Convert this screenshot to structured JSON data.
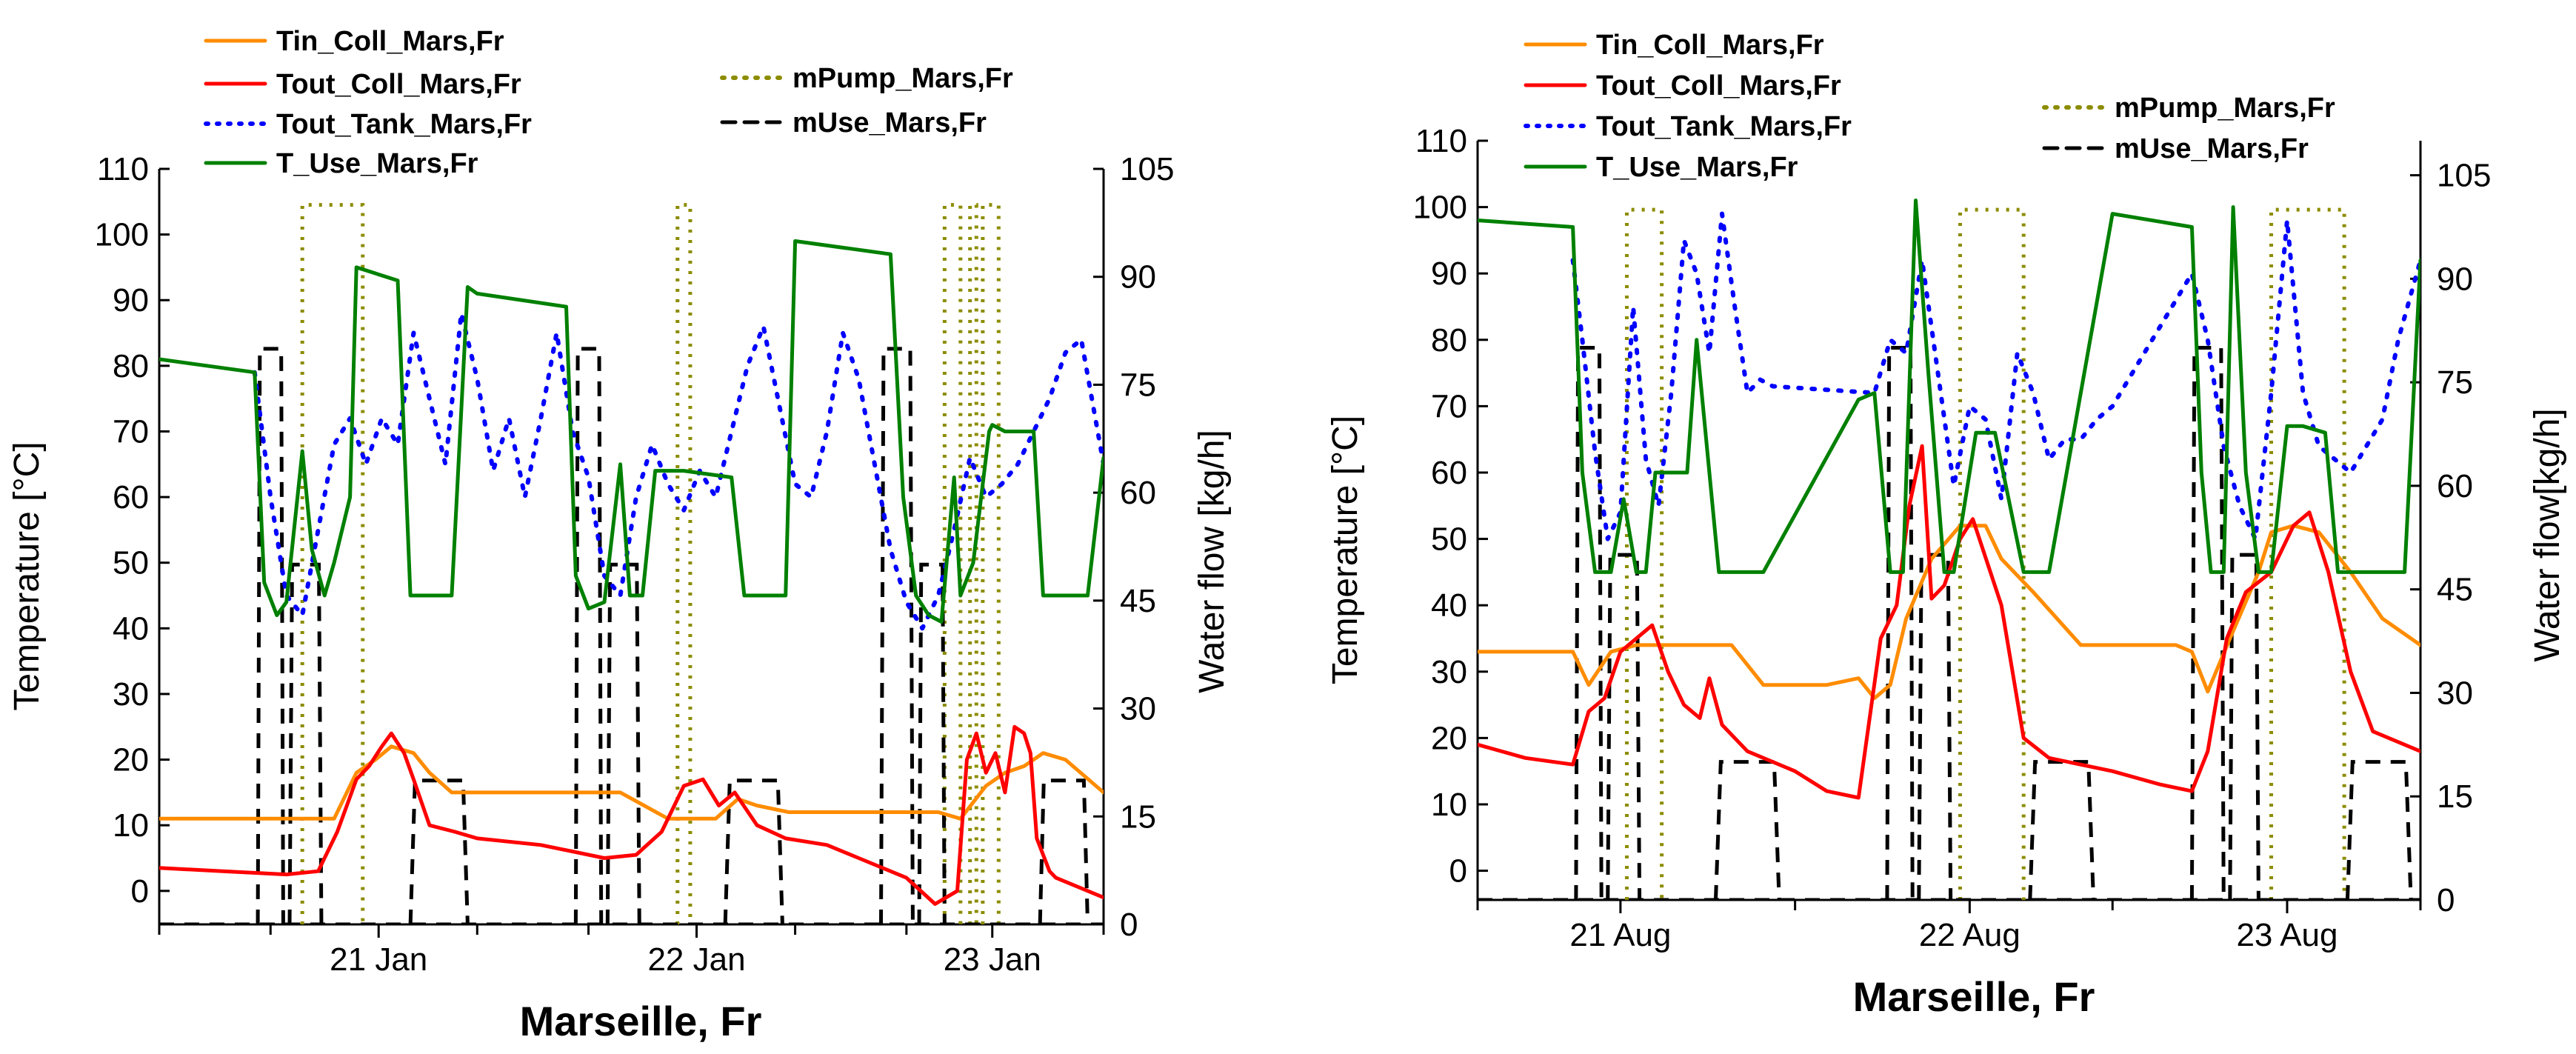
{
  "chart_data": [
    {
      "type": "line",
      "location": "Marseille, Fr",
      "xlabel": "Marseille, Fr",
      "ylabel_left": "Temperature [°C]",
      "ylabel_right": "Water flow [kg/h]",
      "ylim_left": [
        -5,
        110
      ],
      "yticks_left": [
        0,
        10,
        20,
        30,
        40,
        50,
        60,
        70,
        80,
        90,
        100,
        110
      ],
      "ylim_right": [
        0,
        105
      ],
      "yticks_right": [
        0,
        15,
        30,
        45,
        60,
        75,
        90,
        105
      ],
      "xlim": [
        0,
        2.97
      ],
      "x_tick_positions": [
        0.69,
        1.69,
        2.62
      ],
      "x_tick_labels": [
        "21 Jan",
        "22 Jan",
        "23 Jan"
      ],
      "x_minor_ticks": [
        0.0,
        0.35,
        1.0,
        1.35,
        2.0,
        2.35,
        2.97
      ],
      "legend": [
        {
          "name": "Tin_Coll_Mars,Fr",
          "color": "#ff8c00",
          "style": "solid"
        },
        {
          "name": "Tout_Coll_Mars,Fr",
          "color": "#ff0000",
          "style": "solid"
        },
        {
          "name": "Tout_Tank_Mars,Fr",
          "color": "#0000ff",
          "style": "dotted"
        },
        {
          "name": "T_Use_Mars,Fr",
          "color": "#008000",
          "style": "solid"
        },
        {
          "name": "mPump_Mars,Fr",
          "color": "#8c8c00",
          "style": "dotted"
        },
        {
          "name": "mUse_Mars,Fr",
          "color": "#000000",
          "style": "dashed"
        }
      ],
      "series": [
        {
          "name": "Tin_Coll_Mars,Fr",
          "axis": "left",
          "color": "#ff8c00",
          "style": "solid",
          "x": [
            0,
            0.3,
            0.55,
            0.62,
            0.68,
            0.73,
            0.8,
            0.85,
            0.92,
            1.0,
            1.15,
            1.3,
            1.45,
            1.6,
            1.64,
            1.7,
            1.75,
            1.82,
            1.88,
            1.98,
            2.1,
            2.3,
            2.45,
            2.52,
            2.6,
            2.66,
            2.72,
            2.78,
            2.85,
            2.97
          ],
          "y": [
            11,
            11,
            11,
            18,
            20,
            22,
            21,
            18,
            15,
            15,
            15,
            15,
            15,
            11,
            11,
            11,
            11,
            14,
            13,
            12,
            12,
            12,
            12,
            11,
            16,
            18,
            19,
            21,
            20,
            15
          ]
        },
        {
          "name": "Tout_Coll_Mars,Fr",
          "axis": "left",
          "color": "#ff0000",
          "style": "solid",
          "x": [
            0,
            0.2,
            0.4,
            0.5,
            0.56,
            0.62,
            0.66,
            0.7,
            0.73,
            0.77,
            0.8,
            0.85,
            0.93,
            1.0,
            1.2,
            1.4,
            1.5,
            1.58,
            1.65,
            1.71,
            1.76,
            1.81,
            1.88,
            1.97,
            2.1,
            2.2,
            2.35,
            2.44,
            2.51,
            2.54,
            2.57,
            2.6,
            2.63,
            2.66,
            2.69,
            2.72,
            2.74,
            2.76,
            2.8,
            2.82,
            2.97
          ],
          "y": [
            3.5,
            3,
            2.5,
            3,
            9,
            17,
            19,
            22,
            24,
            21,
            17,
            10,
            9,
            8,
            7,
            5,
            5.5,
            9,
            16,
            17,
            13,
            15,
            10,
            8,
            7,
            5,
            2,
            -2,
            0,
            20,
            24,
            18,
            21,
            15,
            25,
            24,
            21,
            8,
            3,
            2,
            -1
          ]
        },
        {
          "name": "Tout_Tank_Mars,Fr",
          "axis": "left",
          "color": "#0000ff",
          "style": "dotted",
          "x": [
            0.3,
            0.35,
            0.4,
            0.45,
            0.5,
            0.55,
            0.6,
            0.65,
            0.7,
            0.75,
            0.8,
            0.85,
            0.9,
            0.95,
            1.0,
            1.05,
            1.1,
            1.15,
            1.2,
            1.25,
            1.3,
            1.35,
            1.4,
            1.45,
            1.5,
            1.55,
            1.6,
            1.65,
            1.7,
            1.75,
            1.8,
            1.85,
            1.9,
            1.95,
            2.0,
            2.05,
            2.1,
            2.15,
            2.2,
            2.25,
            2.3,
            2.35,
            2.4,
            2.45,
            2.5,
            2.55,
            2.6,
            2.65,
            2.7,
            2.75,
            2.8,
            2.85,
            2.9,
            2.97
          ],
          "y": [
            79,
            60,
            45,
            42,
            55,
            68,
            72,
            65,
            72,
            68,
            85,
            75,
            65,
            88,
            78,
            64,
            72,
            60,
            72,
            85,
            70,
            63,
            48,
            45,
            60,
            68,
            62,
            58,
            64,
            60,
            70,
            80,
            86,
            74,
            62,
            60,
            70,
            85,
            78,
            65,
            52,
            44,
            40,
            45,
            55,
            66,
            60,
            62,
            65,
            70,
            75,
            82,
            84,
            65
          ]
        },
        {
          "name": "T_Use_Mars,Fr",
          "axis": "left",
          "color": "#008000",
          "style": "solid",
          "x": [
            0,
            0.3,
            0.33,
            0.37,
            0.4,
            0.45,
            0.48,
            0.52,
            0.55,
            0.6,
            0.62,
            0.75,
            0.79,
            0.83,
            0.92,
            0.97,
            1.0,
            1.28,
            1.31,
            1.35,
            1.4,
            1.45,
            1.48,
            1.52,
            1.56,
            1.62,
            1.65,
            1.8,
            1.84,
            1.88,
            1.97,
            2.0,
            2.3,
            2.34,
            2.38,
            2.42,
            2.46,
            2.5,
            2.52,
            2.56,
            2.61,
            2.62,
            2.66,
            2.75,
            2.78,
            2.82,
            2.92,
            2.97
          ],
          "y": [
            81,
            79,
            47,
            42,
            44,
            67,
            52,
            45,
            50,
            60,
            95,
            93,
            45,
            45,
            45,
            92,
            91,
            89,
            48,
            43,
            44,
            65,
            45,
            45,
            64,
            64,
            64,
            63,
            45,
            45,
            45,
            99,
            97,
            60,
            45,
            42,
            41,
            63,
            45,
            50,
            70,
            71,
            70,
            70,
            45,
            45,
            45,
            66
          ]
        }
      ],
      "mUse_blocks": [
        {
          "from": 0.31,
          "to": 0.39,
          "value": 80
        },
        {
          "from": 0.41,
          "to": 0.51,
          "value": 50
        },
        {
          "from": 0.79,
          "to": 0.97,
          "value": 20
        },
        {
          "from": 1.31,
          "to": 1.39,
          "value": 80
        },
        {
          "from": 1.41,
          "to": 1.51,
          "value": 50
        },
        {
          "from": 1.78,
          "to": 1.96,
          "value": 20
        },
        {
          "from": 2.27,
          "to": 2.37,
          "value": 80
        },
        {
          "from": 2.39,
          "to": 2.47,
          "value": 50
        },
        {
          "from": 2.77,
          "to": 2.92,
          "value": 20
        }
      ],
      "mPump_blocks": [
        {
          "from": 0.45,
          "to": 0.64,
          "value": 100
        },
        {
          "from": 1.63,
          "to": 1.67,
          "value": 100
        },
        {
          "from": 2.47,
          "to": 2.52,
          "value": 100
        },
        {
          "from": 2.55,
          "to": 2.57,
          "value": 100
        },
        {
          "from": 2.59,
          "to": 2.64,
          "value": 100
        }
      ]
    },
    {
      "type": "line",
      "location": "Marseille, Fr",
      "xlabel": "Marseille, Fr",
      "ylabel_left": "Temperature [°C]",
      "ylabel_right": "Water flow[kg/h]",
      "ylim_left": [
        -5,
        110
      ],
      "yticks_left": [
        0,
        10,
        20,
        30,
        40,
        50,
        60,
        70,
        80,
        90,
        100,
        110
      ],
      "ylim_right": [
        0,
        110
      ],
      "yticks_right": [
        0,
        15,
        30,
        45,
        60,
        75,
        90,
        105
      ],
      "xlim": [
        0,
        2.97
      ],
      "x_tick_positions": [
        0.45,
        1.55,
        2.55
      ],
      "x_tick_labels": [
        "21 Aug",
        "22 Aug",
        "23 Aug"
      ],
      "x_minor_ticks": [
        0.0,
        1.0,
        2.0,
        2.97
      ],
      "legend": [
        {
          "name": "Tin_Coll_Mars,Fr",
          "color": "#ff8c00",
          "style": "solid"
        },
        {
          "name": "Tout_Coll_Mars,Fr",
          "color": "#ff0000",
          "style": "solid"
        },
        {
          "name": "Tout_Tank_Mars,Fr",
          "color": "#0000ff",
          "style": "dotted"
        },
        {
          "name": "T_Use_Mars,Fr",
          "color": "#008000",
          "style": "solid"
        },
        {
          "name": "mPump_Mars,Fr",
          "color": "#8c8c00",
          "style": "dotted"
        },
        {
          "name": "mUse_Mars,Fr",
          "color": "#000000",
          "style": "dashed"
        }
      ],
      "series": [
        {
          "name": "Tin_Coll_Mars,Fr",
          "axis": "left",
          "color": "#ff8c00",
          "style": "solid",
          "x": [
            0,
            0.3,
            0.35,
            0.42,
            0.5,
            0.6,
            0.75,
            0.8,
            0.9,
            1.1,
            1.2,
            1.25,
            1.3,
            1.35,
            1.43,
            1.52,
            1.6,
            1.65,
            1.75,
            1.9,
            2.1,
            2.2,
            2.25,
            2.3,
            2.37,
            2.46,
            2.5,
            2.57,
            2.65,
            2.75,
            2.85,
            2.97
          ],
          "y": [
            33,
            33,
            28,
            33,
            34,
            34,
            34,
            34,
            28,
            28,
            29,
            26,
            28,
            38,
            47,
            52,
            52,
            47,
            42,
            34,
            34,
            34,
            33,
            27,
            35,
            45,
            51,
            52,
            51,
            45,
            38,
            34
          ]
        },
        {
          "name": "Tout_Coll_Mars,Fr",
          "axis": "left",
          "color": "#ff0000",
          "style": "solid",
          "x": [
            0,
            0.15,
            0.3,
            0.35,
            0.4,
            0.45,
            0.5,
            0.55,
            0.6,
            0.65,
            0.7,
            0.73,
            0.77,
            0.85,
            1.0,
            1.1,
            1.2,
            1.27,
            1.32,
            1.36,
            1.4,
            1.43,
            1.47,
            1.52,
            1.56,
            1.65,
            1.72,
            1.8,
            2.0,
            2.15,
            2.25,
            2.3,
            2.36,
            2.42,
            2.5,
            2.57,
            2.62,
            2.68,
            2.75,
            2.82,
            2.97
          ],
          "y": [
            19,
            17,
            16,
            24,
            26,
            33,
            35,
            37,
            30,
            25,
            23,
            29,
            22,
            18,
            15,
            12,
            11,
            35,
            40,
            55,
            64,
            41,
            43,
            50,
            53,
            40,
            20,
            17,
            15,
            13,
            12,
            18,
            35,
            42,
            45,
            52,
            54,
            45,
            30,
            21,
            18
          ]
        },
        {
          "name": "Tout_Tank_Mars,Fr",
          "axis": "left",
          "color": "#0000ff",
          "style": "dotted",
          "x": [
            0.3,
            0.33,
            0.37,
            0.41,
            0.45,
            0.49,
            0.53,
            0.57,
            0.61,
            0.65,
            0.69,
            0.73,
            0.77,
            0.81,
            0.85,
            0.89,
            0.93,
            1.25,
            1.3,
            1.35,
            1.4,
            1.45,
            1.5,
            1.55,
            1.6,
            1.65,
            1.7,
            1.75,
            1.8,
            1.85,
            1.9,
            1.95,
            2.0,
            2.25,
            2.3,
            2.35,
            2.4,
            2.45,
            2.5,
            2.55,
            2.6,
            2.65,
            2.7,
            2.75,
            2.8,
            2.85,
            2.9,
            2.97
          ],
          "y": [
            92,
            80,
            63,
            50,
            54,
            85,
            62,
            55,
            72,
            95,
            90,
            78,
            99,
            85,
            72,
            74,
            73,
            72,
            80,
            78,
            92,
            75,
            58,
            70,
            68,
            56,
            78,
            72,
            62,
            65,
            65,
            68,
            70,
            90,
            80,
            64,
            55,
            50,
            72,
            98,
            72,
            64,
            62,
            60,
            64,
            68,
            80,
            92
          ]
        },
        {
          "name": "T_Use_Mars,Fr",
          "axis": "left",
          "color": "#008000",
          "style": "solid",
          "x": [
            0,
            0.3,
            0.33,
            0.37,
            0.42,
            0.46,
            0.5,
            0.53,
            0.56,
            0.6,
            0.66,
            0.69,
            0.73,
            0.76,
            0.8,
            0.85,
            0.9,
            1.2,
            1.25,
            1.3,
            1.34,
            1.38,
            1.42,
            1.47,
            1.5,
            1.57,
            1.6,
            1.63,
            1.72,
            1.76,
            1.8,
            2.0,
            2.25,
            2.28,
            2.31,
            2.35,
            2.38,
            2.42,
            2.46,
            2.5,
            2.55,
            2.6,
            2.67,
            2.71,
            2.75,
            2.82,
            2.92,
            2.97
          ],
          "y": [
            98,
            97,
            60,
            45,
            45,
            56,
            45,
            45,
            60,
            60,
            60,
            80,
            60,
            45,
            45,
            45,
            45,
            71,
            72,
            45,
            45,
            101,
            75,
            45,
            45,
            66,
            66,
            66,
            45,
            45,
            45,
            99,
            97,
            60,
            45,
            45,
            100,
            60,
            45,
            45,
            67,
            67,
            66,
            45,
            45,
            45,
            45,
            92
          ]
        }
      ],
      "mUse_blocks": [
        {
          "from": 0.31,
          "to": 0.39,
          "value": 80
        },
        {
          "from": 0.41,
          "to": 0.51,
          "value": 50
        },
        {
          "from": 0.75,
          "to": 0.95,
          "value": 20
        },
        {
          "from": 1.29,
          "to": 1.37,
          "value": 80
        },
        {
          "from": 1.39,
          "to": 1.49,
          "value": 50
        },
        {
          "from": 1.74,
          "to": 1.94,
          "value": 20
        },
        {
          "from": 2.25,
          "to": 2.35,
          "value": 80
        },
        {
          "from": 2.37,
          "to": 2.46,
          "value": 50
        },
        {
          "from": 2.74,
          "to": 2.94,
          "value": 20
        }
      ],
      "mPump_blocks": [
        {
          "from": 0.47,
          "to": 0.58,
          "value": 100
        },
        {
          "from": 1.52,
          "to": 1.72,
          "value": 100
        },
        {
          "from": 2.5,
          "to": 2.73,
          "value": 100
        }
      ]
    }
  ]
}
